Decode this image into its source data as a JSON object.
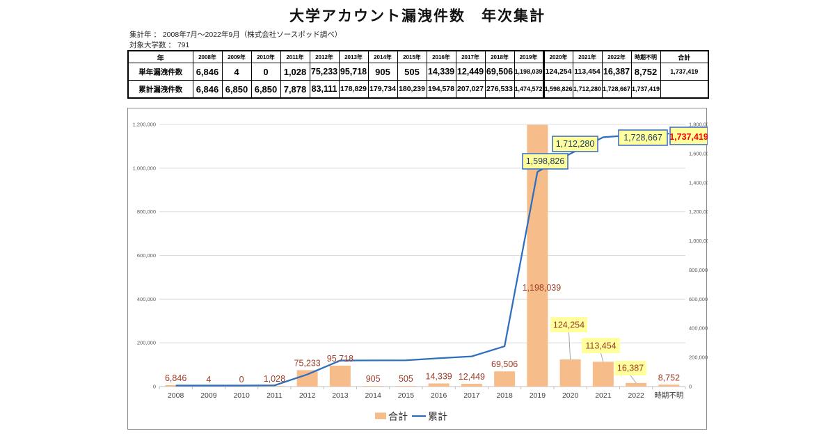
{
  "page": {
    "title": "大学アカウント漏洩件数　年次集計"
  },
  "meta": {
    "line1": "集計年 ： 2008年7月～2022年9月（株式会社ソースポッド調べ）",
    "line2": "対象大学数 ： 791"
  },
  "colors": {
    "bar": "#F6BD8B",
    "line": "#2E6FBE",
    "label_maroon": "#9E3B25",
    "label_bg_yellow": "#FFFF9D",
    "callout_border": "#4472C4",
    "callout_text": "#1F3864",
    "total_red": "#FF0000",
    "axis_tick_text": "#595959",
    "gridline": "#DCDCDC"
  },
  "table": {
    "corner_label": "年",
    "year_headers": [
      "2008年",
      "2009年",
      "2010年",
      "2011年",
      "2012年",
      "2013年",
      "2014年",
      "2015年",
      "2016年",
      "2017年",
      "2018年",
      "2019年",
      "2020年",
      "2021年",
      "2022年",
      "時期不明",
      "合計"
    ],
    "rows": [
      {
        "label": "単年漏洩件数",
        "values": [
          "6,846",
          "4",
          "0",
          "1,028",
          "75,233",
          "95,718",
          "905",
          "505",
          "14,339",
          "12,449",
          "69,506",
          "1,198,039",
          "124,254",
          "113,454",
          "16,387",
          "8,752"
        ],
        "total": "1,737,419"
      },
      {
        "label": "累計漏洩件数",
        "values": [
          "6,846",
          "6,850",
          "6,850",
          "7,878",
          "83,111",
          "178,829",
          "179,734",
          "180,239",
          "194,578",
          "207,027",
          "276,533",
          "1,474,572",
          "1,598,826",
          "1,712,280",
          "1,728,667",
          "1,737,419"
        ],
        "total": ""
      }
    ]
  },
  "chart_data": {
    "type": "combo-bar-line",
    "categories": [
      "2008",
      "2009",
      "2010",
      "2011",
      "2012",
      "2013",
      "2014",
      "2015",
      "2016",
      "2017",
      "2018",
      "2019",
      "2020",
      "2021",
      "2022",
      "時期不明"
    ],
    "series": [
      {
        "name": "合計",
        "chart": "bar",
        "axis": "left",
        "color": "#F6BD8B",
        "values": [
          6846,
          4,
          0,
          1028,
          75233,
          95718,
          905,
          505,
          14339,
          12449,
          69506,
          1198039,
          124254,
          113454,
          16387,
          8752
        ],
        "labels": [
          "6,846",
          "4",
          "0",
          "1,028",
          "75,233",
          "95,718",
          "905",
          "505",
          "14,339",
          "12,449",
          "69,506",
          "1,198,039",
          "124,254",
          "113,454",
          "16,387",
          "8,752"
        ],
        "label_styles": [
          "plain",
          "plain",
          "plain",
          "plain",
          "plain",
          "plain",
          "plain",
          "plain",
          "plain",
          "plain",
          "plain",
          "plain",
          "boxed",
          "boxed",
          "boxed",
          "plain"
        ]
      },
      {
        "name": "累計",
        "chart": "line",
        "axis": "right",
        "color": "#2E6FBE",
        "values": [
          6846,
          6850,
          6850,
          7878,
          83111,
          178829,
          179734,
          180239,
          194578,
          207027,
          276533,
          1474572,
          1598826,
          1712280,
          1728667,
          1737419
        ],
        "callouts": [
          {
            "index": 12,
            "label": "1,598,826",
            "color": "#1F3864"
          },
          {
            "index": 13,
            "label": "1,712,280",
            "color": "#1F3864"
          },
          {
            "index": 14,
            "label": "1,728,667",
            "color": "#1F3864"
          },
          {
            "index": 15,
            "label": "1,737,419",
            "color": "#FF0000"
          }
        ]
      }
    ],
    "left_axis": {
      "min": 0,
      "max": 1200000,
      "step": 200000,
      "tick_labels": [
        "0",
        "200,000",
        "400,000",
        "600,000",
        "800,000",
        "1,000,000",
        "1,200,000"
      ]
    },
    "right_axis": {
      "min": 0,
      "max": 1800000,
      "step": 200000,
      "tick_labels": [
        "0",
        "200,000",
        "400,000",
        "600,000",
        "800,000",
        "1,000,000",
        "1,200,000",
        "1,400,000",
        "1,600,000",
        "1,800,000"
      ]
    },
    "grid": true,
    "legend_position": "bottom",
    "legend": [
      {
        "label": "合計",
        "type": "bar",
        "color": "#F6BD8B"
      },
      {
        "label": "累計",
        "type": "line",
        "color": "#2E6FBE"
      }
    ]
  }
}
